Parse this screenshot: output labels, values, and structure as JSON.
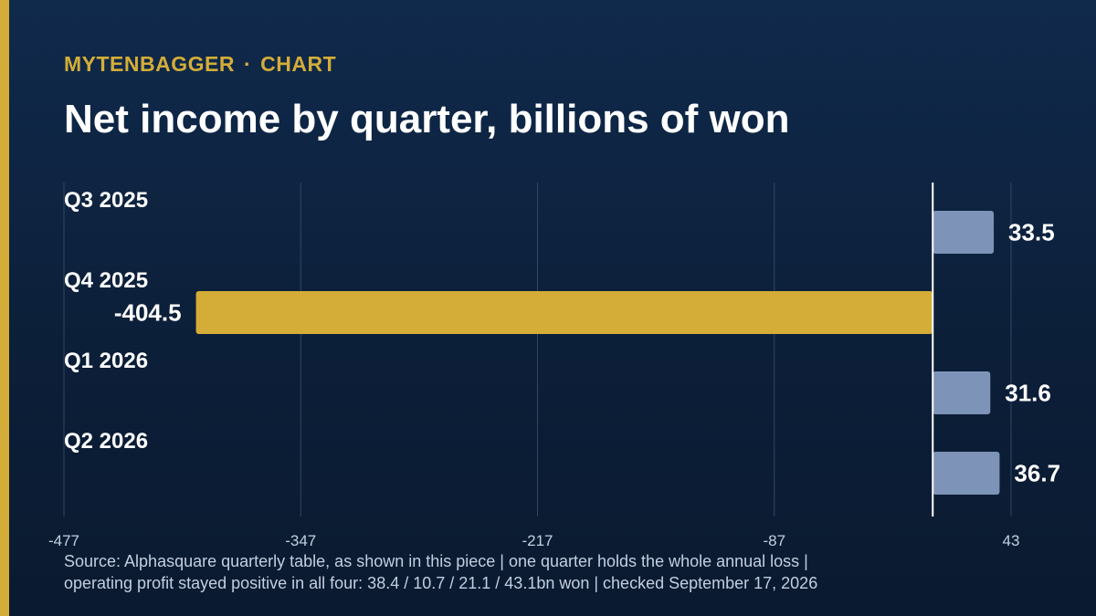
{
  "header": {
    "brand": "MYTENBAGGER",
    "separator": "·",
    "section": "CHART",
    "title": "Net income by quarter, billions of won"
  },
  "chart_data": {
    "type": "bar",
    "orientation": "horizontal",
    "title": "Net income by quarter, billions of won",
    "xlabel": "",
    "ylabel": "",
    "categories": [
      "Q3 2025",
      "Q4 2025",
      "Q1 2026",
      "Q2 2026"
    ],
    "values": [
      33.5,
      -404.5,
      31.6,
      36.7
    ],
    "value_labels": [
      "33.5",
      "-404.5",
      "31.6",
      "36.7"
    ],
    "xlim": [
      -477,
      43
    ],
    "ticks": [
      -477,
      -347,
      -217,
      -87,
      43
    ],
    "tick_labels": [
      "-477",
      "-347",
      "-217",
      "-87",
      "43"
    ],
    "grid": true,
    "legend": "none",
    "colors": {
      "positive": "#7d93b8",
      "negative": "#d4ad38",
      "grid": "#2f4668",
      "zero_line": "#ffffff"
    }
  },
  "footer": {
    "source_line1": "Source: Alphasquare quarterly table, as shown in this piece | one quarter holds the whole annual loss |",
    "source_line2": "operating profit stayed positive in all four: 38.4 / 10.7 / 21.1 / 43.1bn won | checked September 17, 2026"
  },
  "colors": {
    "accent": "#d4ad38",
    "background": "#0c1f39"
  }
}
